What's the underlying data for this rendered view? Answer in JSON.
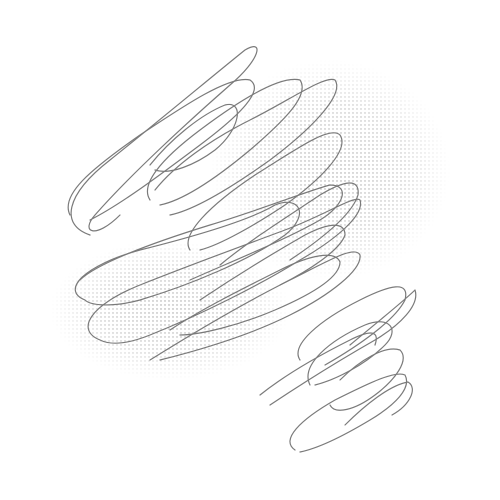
{
  "colors": {
    "background": "#ffffff",
    "stroke": "#7a7a7a",
    "halftone": "#9a9a9a"
  },
  "icons": {
    "artwork": "scribble-artwork"
  }
}
